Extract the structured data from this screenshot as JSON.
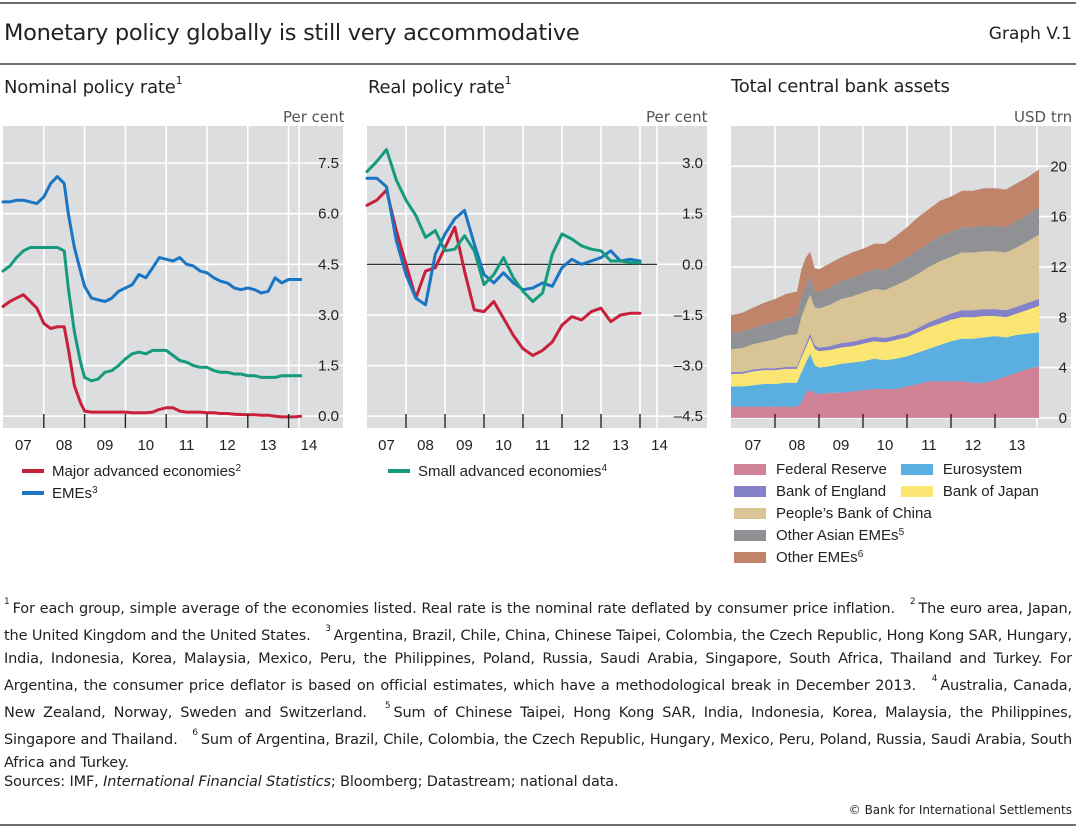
{
  "header": {
    "title": "Monetary policy globally is still very accommodative",
    "graph_id": "Graph V.1"
  },
  "colors": {
    "panel_bg": "#dcdddf",
    "grid": "#ffffff",
    "major_advanced": "#c8203a",
    "emes": "#1a75c2",
    "small_advanced": "#169a7e",
    "federal_reserve": "#cf8196",
    "eurosystem": "#5aaee0",
    "bank_of_england": "#8581c8",
    "bank_of_japan": "#fbe673",
    "pboc": "#d9c496",
    "other_asian": "#8f9194",
    "other_emes": "#c0846a"
  },
  "panels": [
    {
      "title": "Nominal policy rate",
      "sup": "1",
      "unit": "Per cent"
    },
    {
      "title": "Real policy rate",
      "sup": "1",
      "unit": "Per cent"
    },
    {
      "title": "Total central bank assets",
      "sup": "",
      "unit": "USD trn"
    }
  ],
  "legends": {
    "nominal": [
      {
        "label": "Major advanced economies",
        "sup": "2",
        "color_key": "major_advanced"
      },
      {
        "label": "EMEs",
        "sup": "3",
        "color_key": "emes"
      }
    ],
    "real": [
      {
        "label": "Small advanced economies",
        "sup": "4",
        "color_key": "small_advanced"
      }
    ],
    "assets": [
      {
        "label": "Federal Reserve",
        "sup": "",
        "color_key": "federal_reserve"
      },
      {
        "label": "Eurosystem",
        "sup": "",
        "color_key": "eurosystem"
      },
      {
        "label": "Bank of England",
        "sup": "",
        "color_key": "bank_of_england"
      },
      {
        "label": "Bank of Japan",
        "sup": "",
        "color_key": "bank_of_japan"
      },
      {
        "label": "People’s Bank of China",
        "sup": "",
        "color_key": "pboc"
      },
      {
        "label": "Other Asian EMEs",
        "sup": "5",
        "color_key": "other_asian"
      },
      {
        "label": "Other EMEs",
        "sup": "6",
        "color_key": "other_emes"
      }
    ]
  },
  "chart_data": [
    {
      "type": "line",
      "title": "Nominal policy rate",
      "ylabel": "Per cent",
      "ylim": [
        -0.35,
        8.6
      ],
      "xlim": [
        2007.0,
        2014.85
      ],
      "yticks": [
        "7.5",
        "6.0",
        "4.5",
        "3.0",
        "1.5",
        "0.0"
      ],
      "ytick_values": [
        7.5,
        6.0,
        4.5,
        3.0,
        1.5,
        0.0
      ],
      "xticks": [
        "07",
        "08",
        "09",
        "10",
        "11",
        "12",
        "13",
        "14"
      ],
      "grid": true,
      "x": [
        2007.0,
        2007.17,
        2007.33,
        2007.5,
        2007.67,
        2007.83,
        2008.0,
        2008.17,
        2008.33,
        2008.5,
        2008.6,
        2008.75,
        2008.9,
        2009.0,
        2009.17,
        2009.33,
        2009.5,
        2009.67,
        2009.83,
        2010.0,
        2010.17,
        2010.33,
        2010.5,
        2010.67,
        2010.83,
        2011.0,
        2011.17,
        2011.33,
        2011.5,
        2011.67,
        2011.83,
        2012.0,
        2012.17,
        2012.33,
        2012.5,
        2012.67,
        2012.83,
        2013.0,
        2013.17,
        2013.33,
        2013.5,
        2013.67,
        2013.83,
        2014.0,
        2014.17,
        2014.3
      ],
      "series": [
        {
          "name": "Major advanced economies",
          "color_key": "major_advanced",
          "values": [
            3.25,
            3.4,
            3.5,
            3.6,
            3.4,
            3.2,
            2.75,
            2.6,
            2.65,
            2.65,
            2.0,
            0.9,
            0.4,
            0.15,
            0.12,
            0.12,
            0.12,
            0.12,
            0.12,
            0.12,
            0.1,
            0.1,
            0.1,
            0.12,
            0.2,
            0.25,
            0.25,
            0.15,
            0.12,
            0.12,
            0.12,
            0.1,
            0.1,
            0.08,
            0.08,
            0.06,
            0.05,
            0.04,
            0.04,
            0.03,
            0.03,
            0.0,
            -0.02,
            -0.02,
            -0.02,
            0.0
          ]
        },
        {
          "name": "EMEs",
          "color_key": "emes",
          "values": [
            6.35,
            6.35,
            6.4,
            6.4,
            6.35,
            6.3,
            6.5,
            6.9,
            7.1,
            6.9,
            6.0,
            5.0,
            4.3,
            3.85,
            3.5,
            3.45,
            3.4,
            3.5,
            3.7,
            3.8,
            3.9,
            4.2,
            4.1,
            4.4,
            4.7,
            4.65,
            4.6,
            4.7,
            4.5,
            4.45,
            4.3,
            4.25,
            4.1,
            4.0,
            3.95,
            3.8,
            3.75,
            3.8,
            3.75,
            3.65,
            3.7,
            4.1,
            3.95,
            4.05,
            4.05,
            4.05
          ]
        },
        {
          "name": "Small advanced economies",
          "color_key": "small_advanced",
          "values": [
            4.3,
            4.45,
            4.7,
            4.9,
            5.0,
            5.0,
            5.0,
            5.0,
            5.0,
            4.9,
            3.8,
            2.5,
            1.6,
            1.15,
            1.05,
            1.1,
            1.3,
            1.35,
            1.5,
            1.7,
            1.85,
            1.9,
            1.85,
            1.95,
            1.95,
            1.95,
            1.8,
            1.65,
            1.6,
            1.5,
            1.45,
            1.45,
            1.35,
            1.3,
            1.3,
            1.25,
            1.25,
            1.2,
            1.2,
            1.15,
            1.15,
            1.15,
            1.2,
            1.2,
            1.2,
            1.2
          ]
        }
      ]
    },
    {
      "type": "line",
      "title": "Real policy rate",
      "ylabel": "Per cent",
      "ylim": [
        -4.85,
        4.1
      ],
      "xlim": [
        2007.0,
        2014.85
      ],
      "yticks": [
        "3.0",
        "1.5",
        "0.0",
        "–1.5",
        "–3.0",
        "–4.5"
      ],
      "ytick_values": [
        3.0,
        1.5,
        0.0,
        -1.5,
        -3.0,
        -4.5
      ],
      "xticks": [
        "07",
        "08",
        "09",
        "10",
        "11",
        "12",
        "13",
        "14"
      ],
      "grid": true,
      "zero_line": true,
      "x": [
        2007.0,
        2007.25,
        2007.5,
        2007.75,
        2008.0,
        2008.25,
        2008.5,
        2008.75,
        2009.0,
        2009.25,
        2009.5,
        2009.75,
        2010.0,
        2010.25,
        2010.5,
        2010.75,
        2011.0,
        2011.25,
        2011.5,
        2011.75,
        2012.0,
        2012.25,
        2012.5,
        2012.75,
        2013.0,
        2013.25,
        2013.5,
        2013.75,
        2014.0
      ],
      "series": [
        {
          "name": "Major advanced economies",
          "color_key": "major_advanced",
          "values": [
            1.75,
            1.9,
            2.2,
            1.0,
            0.0,
            -1.0,
            -0.2,
            -0.1,
            0.5,
            1.1,
            -0.2,
            -1.35,
            -1.4,
            -1.1,
            -1.6,
            -2.1,
            -2.5,
            -2.7,
            -2.55,
            -2.3,
            -1.8,
            -1.55,
            -1.65,
            -1.4,
            -1.3,
            -1.7,
            -1.5,
            -1.45,
            -1.45
          ]
        },
        {
          "name": "EMEs",
          "color_key": "emes",
          "values": [
            2.55,
            2.55,
            2.3,
            0.7,
            -0.3,
            -1.0,
            -1.2,
            0.3,
            0.9,
            1.35,
            1.6,
            0.6,
            -0.3,
            -0.55,
            -0.25,
            -0.55,
            -0.75,
            -0.7,
            -0.55,
            -0.65,
            -0.1,
            0.15,
            0.0,
            0.1,
            0.2,
            0.4,
            0.1,
            0.15,
            0.1
          ]
        },
        {
          "name": "Small advanced economies",
          "color_key": "small_advanced",
          "values": [
            2.75,
            3.05,
            3.4,
            2.5,
            1.9,
            1.45,
            0.8,
            1.0,
            0.4,
            0.45,
            0.85,
            0.4,
            -0.6,
            -0.3,
            0.2,
            -0.4,
            -0.8,
            -1.1,
            -0.85,
            0.3,
            0.9,
            0.75,
            0.55,
            0.45,
            0.4,
            0.1,
            0.1,
            0.05,
            0.05
          ]
        }
      ]
    },
    {
      "type": "area",
      "stacked": true,
      "title": "Total central bank assets",
      "ylabel": "USD trn",
      "ylim": [
        -0.8,
        23.2
      ],
      "xlim": [
        2007.0,
        2014.7
      ],
      "yticks": [
        "20",
        "16",
        "12",
        "8",
        "4",
        "0"
      ],
      "ytick_values": [
        20,
        16,
        12,
        8,
        4,
        0
      ],
      "xticks": [
        "07",
        "08",
        "09",
        "10",
        "11",
        "12",
        "13"
      ],
      "grid": true,
      "x": [
        2007.0,
        2007.25,
        2007.5,
        2007.75,
        2008.0,
        2008.25,
        2008.5,
        2008.6,
        2008.7,
        2008.8,
        2008.9,
        2009.0,
        2009.25,
        2009.5,
        2009.75,
        2010.0,
        2010.25,
        2010.5,
        2010.75,
        2011.0,
        2011.25,
        2011.5,
        2011.75,
        2012.0,
        2012.25,
        2012.5,
        2012.75,
        2013.0,
        2013.25,
        2013.5,
        2013.75,
        2014.0
      ],
      "series": [
        {
          "name": "Federal Reserve",
          "color_key": "federal_reserve",
          "values": [
            0.9,
            0.9,
            0.9,
            0.9,
            0.9,
            0.9,
            0.9,
            1.2,
            2.0,
            2.2,
            2.0,
            1.9,
            2.0,
            2.0,
            2.1,
            2.2,
            2.3,
            2.3,
            2.3,
            2.5,
            2.7,
            2.9,
            2.9,
            2.9,
            2.9,
            2.8,
            2.8,
            3.0,
            3.3,
            3.6,
            3.9,
            4.1
          ]
        },
        {
          "name": "Eurosystem",
          "color_key": "eurosystem",
          "values": [
            1.6,
            1.6,
            1.7,
            1.8,
            1.8,
            1.9,
            1.9,
            2.4,
            2.4,
            2.9,
            2.2,
            2.1,
            2.1,
            2.3,
            2.3,
            2.3,
            2.4,
            2.3,
            2.4,
            2.4,
            2.5,
            2.6,
            2.9,
            3.2,
            3.4,
            3.5,
            3.6,
            3.5,
            3.1,
            3.0,
            2.8,
            2.7
          ]
        },
        {
          "name": "Bank of Japan",
          "color_key": "bank_of_japan",
          "values": [
            1.0,
            1.0,
            1.1,
            1.1,
            1.1,
            1.1,
            1.1,
            1.2,
            1.2,
            1.3,
            1.3,
            1.3,
            1.3,
            1.3,
            1.3,
            1.4,
            1.4,
            1.4,
            1.5,
            1.5,
            1.6,
            1.7,
            1.7,
            1.7,
            1.7,
            1.7,
            1.7,
            1.6,
            1.6,
            1.7,
            1.9,
            2.1
          ]
        },
        {
          "name": "Bank of England",
          "color_key": "bank_of_england",
          "values": [
            0.15,
            0.15,
            0.15,
            0.15,
            0.15,
            0.15,
            0.15,
            0.2,
            0.25,
            0.3,
            0.3,
            0.3,
            0.3,
            0.35,
            0.35,
            0.35,
            0.35,
            0.35,
            0.35,
            0.35,
            0.35,
            0.4,
            0.45,
            0.5,
            0.55,
            0.55,
            0.55,
            0.55,
            0.55,
            0.55,
            0.55,
            0.55
          ]
        },
        {
          "name": "People’s Bank of China",
          "color_key": "pboc",
          "values": [
            1.8,
            1.9,
            2.0,
            2.1,
            2.3,
            2.5,
            2.6,
            3.0,
            3.1,
            3.1,
            3.0,
            3.1,
            3.3,
            3.5,
            3.6,
            3.7,
            3.8,
            3.8,
            4.0,
            4.2,
            4.3,
            4.4,
            4.5,
            4.5,
            4.6,
            4.6,
            4.6,
            4.6,
            4.6,
            4.7,
            4.9,
            5.1
          ]
        },
        {
          "name": "Other Asian EMEs",
          "color_key": "other_asian",
          "values": [
            1.3,
            1.3,
            1.3,
            1.4,
            1.4,
            1.4,
            1.5,
            1.6,
            1.5,
            1.4,
            1.3,
            1.3,
            1.4,
            1.4,
            1.5,
            1.5,
            1.6,
            1.6,
            1.7,
            1.8,
            1.9,
            1.9,
            2.0,
            2.0,
            2.0,
            2.0,
            2.0,
            2.0,
            2.0,
            2.1,
            2.1,
            2.2
          ]
        },
        {
          "name": "Other EMEs",
          "color_key": "other_emes",
          "values": [
            1.4,
            1.5,
            1.6,
            1.7,
            1.8,
            1.9,
            1.9,
            2.2,
            2.3,
            2.0,
            1.8,
            1.8,
            1.9,
            1.9,
            2.0,
            2.0,
            2.0,
            2.1,
            2.2,
            2.4,
            2.6,
            2.7,
            2.8,
            2.8,
            2.9,
            2.9,
            3.0,
            3.0,
            3.0,
            3.0,
            3.0,
            3.0
          ]
        }
      ]
    }
  ],
  "footnotes": [
    {
      "n": "1",
      "text": "For each group, simple average of the economies listed. Real rate is the nominal rate deflated by consumer price inflation."
    },
    {
      "n": "2",
      "text": "The euro area, Japan, the United Kingdom and the United States."
    },
    {
      "n": "3",
      "text": "Argentina, Brazil, Chile, China, Chinese Taipei, Colombia, the Czech Republic, Hong Kong SAR, Hungary, India, Indonesia, Korea, Malaysia, Mexico, Peru, the Philippines, Poland, Russia, Saudi Arabia, Singapore, South Africa, Thailand and Turkey. For Argentina, the consumer price deflator is based on official estimates, which have a methodological break in December 2013."
    },
    {
      "n": "4",
      "text": "Australia, Canada, New Zealand, Norway, Sweden and Switzerland."
    },
    {
      "n": "5",
      "text": "Sum of Chinese Taipei, Hong Kong SAR, India, Indonesia, Korea, Malaysia, the Philippines, Singapore and Thailand."
    },
    {
      "n": "6",
      "text": "Sum of Argentina, Brazil, Chile, Colombia, the Czech Republic, Hungary, Mexico, Peru, Poland, Russia, Saudi Arabia, South Africa and Turkey."
    }
  ],
  "sources": {
    "prefix": "Sources: IMF, ",
    "italic": "International Financial Statistics",
    "suffix": "; Bloomberg; Datastream; national data."
  },
  "copyright": "© Bank for International Settlements"
}
